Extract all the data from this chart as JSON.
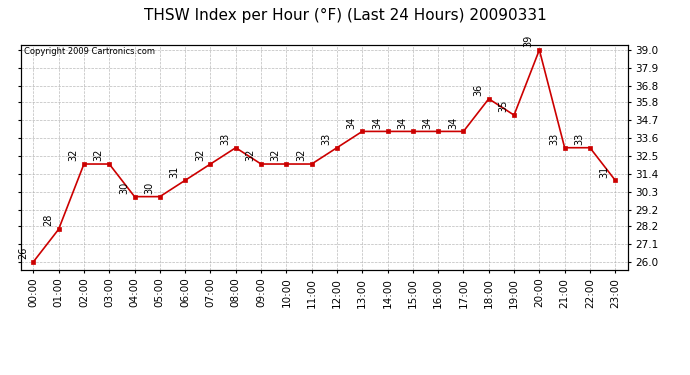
{
  "title": "THSW Index per Hour (°F) (Last 24 Hours) 20090331",
  "copyright": "Copyright 2009 Cartronics.com",
  "hours": [
    "00:00",
    "01:00",
    "02:00",
    "03:00",
    "04:00",
    "05:00",
    "06:00",
    "07:00",
    "08:00",
    "09:00",
    "10:00",
    "11:00",
    "12:00",
    "13:00",
    "14:00",
    "15:00",
    "16:00",
    "17:00",
    "18:00",
    "19:00",
    "20:00",
    "21:00",
    "22:00",
    "23:00"
  ],
  "values": [
    26,
    28,
    32,
    32,
    30,
    30,
    31,
    32,
    33,
    32,
    32,
    32,
    33,
    34,
    34,
    34,
    34,
    34,
    36,
    35,
    39,
    33,
    33,
    31
  ],
  "ylim_min": 26.0,
  "ylim_max": 39.0,
  "yticks": [
    26.0,
    27.1,
    28.2,
    29.2,
    30.3,
    31.4,
    32.5,
    33.6,
    34.7,
    35.8,
    36.8,
    37.9,
    39.0
  ],
  "ytick_labels": [
    "26.0",
    "27.1",
    "28.2",
    "29.2",
    "30.3",
    "31.4",
    "32.5",
    "33.6",
    "34.7",
    "35.8",
    "36.8",
    "37.9",
    "39.0"
  ],
  "line_color": "#cc0000",
  "marker_color": "#cc0000",
  "bg_color": "#ffffff",
  "grid_color": "#aaaaaa",
  "title_fontsize": 11,
  "tick_fontsize": 7.5,
  "annot_fontsize": 7
}
